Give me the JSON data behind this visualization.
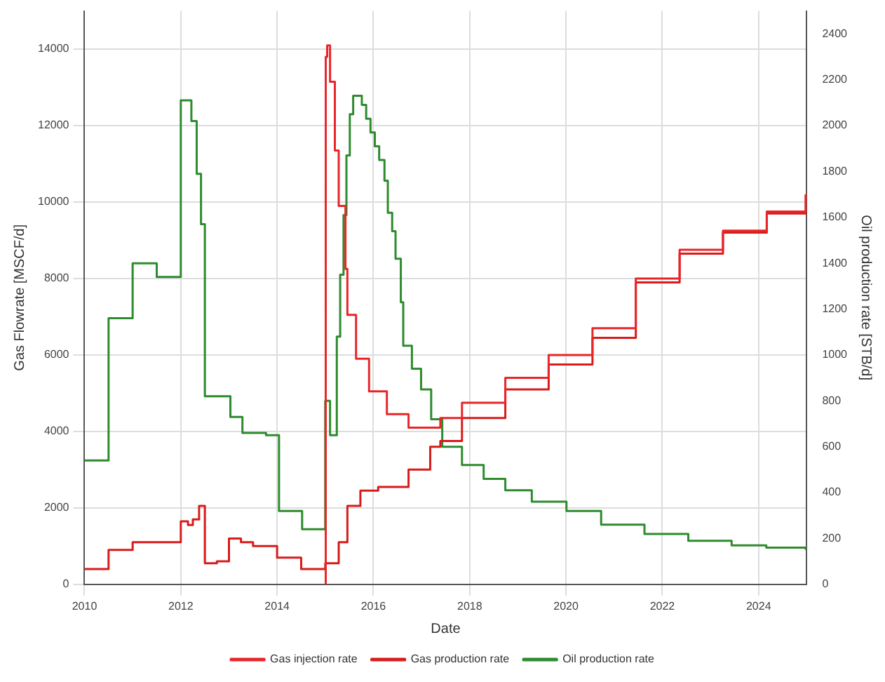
{
  "chart_data": {
    "type": "step",
    "xlabel": "Date",
    "ylabel": "Gas Flowrate [MSCF/d]",
    "y2label": "Oil production rate [STB/d]",
    "xlim": [
      2010,
      2025
    ],
    "xticks": [
      2010,
      2012,
      2014,
      2016,
      2018,
      2020,
      2022,
      2024
    ],
    "ylim": [
      0,
      15000
    ],
    "yticks": [
      0,
      2000,
      4000,
      6000,
      8000,
      10000,
      12000,
      14000
    ],
    "y2lim": [
      0,
      2500
    ],
    "y2ticks": [
      0,
      200,
      400,
      600,
      800,
      1000,
      1200,
      1400,
      1600,
      1800,
      2000,
      2200,
      2400
    ],
    "grid": true,
    "legend": "bottom",
    "marker": "none",
    "line_style": "solid",
    "series": [
      {
        "name": "Gas injection rate",
        "color": "#e8262a",
        "x": [
          2015.0,
          2015.01,
          2015.04,
          2015.1,
          2015.2,
          2015.28,
          2015.42,
          2015.46,
          2015.64,
          2015.91,
          2016.28,
          2016.73,
          2017.0,
          2017.39,
          2017.84,
          2018.74,
          2019.64,
          2020.55,
          2021.45,
          2022.36,
          2023.26,
          2024.17,
          2024.98
        ],
        "values": [
          0,
          13800,
          14100,
          13150,
          11350,
          9900,
          8250,
          7050,
          5900,
          5050,
          4450,
          4100,
          4100,
          4350,
          4750,
          5400,
          6000,
          6700,
          8000,
          8750,
          9250,
          9750,
          10200
        ]
      },
      {
        "name": "Gas production rate",
        "color": "#d81b1b",
        "x": [
          2010,
          2010.5,
          2011,
          2011.5,
          2012,
          2012.15,
          2012.25,
          2012.38,
          2012.5,
          2012.75,
          2013,
          2013.25,
          2013.5,
          2014,
          2014.5,
          2015.0,
          2015.04,
          2015.28,
          2015.46,
          2015.73,
          2016.1,
          2016.46,
          2016.73,
          2017.18,
          2017.39,
          2017.84,
          2018.74,
          2019.64,
          2020.55,
          2021.45,
          2022.36,
          2023.26,
          2024.17,
          2024.98
        ],
        "values": [
          400,
          900,
          1100,
          1100,
          1650,
          1550,
          1700,
          2050,
          550,
          600,
          1200,
          1100,
          1000,
          700,
          400,
          550,
          550,
          1100,
          2050,
          2450,
          2550,
          2550,
          3000,
          3600,
          3750,
          4350,
          5100,
          5750,
          6450,
          7900,
          8650,
          9200,
          9700,
          10200
        ]
      },
      {
        "name": "Oil production rate",
        "color": "#2e8b2e",
        "axis": "y2",
        "x": [
          2010,
          2010.5,
          2011,
          2011.5,
          2012,
          2012.22,
          2012.33,
          2012.42,
          2012.5,
          2013.03,
          2013.28,
          2013.77,
          2014.04,
          2014.52,
          2015.0,
          2015.1,
          2015.24,
          2015.31,
          2015.38,
          2015.44,
          2015.51,
          2015.58,
          2015.68,
          2015.76,
          2015.85,
          2015.94,
          2016.03,
          2016.12,
          2016.23,
          2016.3,
          2016.39,
          2016.46,
          2016.57,
          2016.62,
          2016.8,
          2016.99,
          2017.2,
          2017.43,
          2017.84,
          2018.29,
          2018.74,
          2019.29,
          2020.01,
          2020.73,
          2021.63,
          2022.54,
          2023.44,
          2024.16,
          2024.98
        ],
        "values": [
          540,
          1160,
          1400,
          1340,
          2110,
          2020,
          1790,
          1570,
          820,
          730,
          660,
          650,
          320,
          240,
          800,
          650,
          1080,
          1350,
          1610,
          1870,
          2050,
          2130,
          2130,
          2090,
          2030,
          1970,
          1910,
          1850,
          1760,
          1620,
          1540,
          1420,
          1230,
          1040,
          940,
          850,
          720,
          600,
          520,
          460,
          410,
          360,
          320,
          260,
          220,
          190,
          170,
          160,
          150
        ]
      }
    ]
  }
}
